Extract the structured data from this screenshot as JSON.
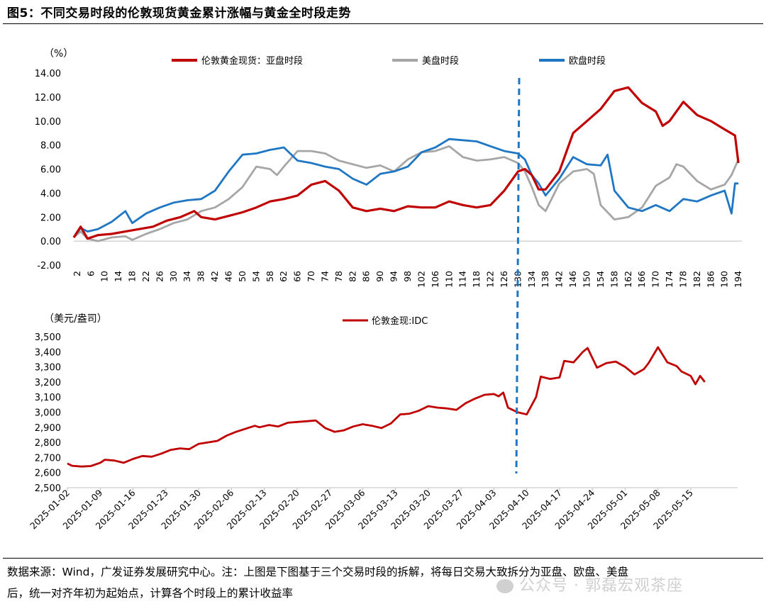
{
  "title": "图5：不同交易时段的伦敦现货黄金累计涨幅与黄金全时段走势",
  "footnote_line1": "数据来源：Wind，广发证券发展研究中心。注：上图是下图基于三个交易时段的拆解，将每日交易大致拆分为亚盘、欧盘、美盘",
  "footnote_line2": "后，统一对齐年初为起始点，计算各个时段上的累计收益率",
  "watermark": "公众号 · 郭磊宏观茶座",
  "colors": {
    "asia": "#c00000",
    "us": "#a6a6a6",
    "eu": "#1f77c4",
    "idc": "#c00000",
    "divider": "#1f77c4"
  },
  "chart_data": [
    {
      "type": "line",
      "unit_label": "（%）",
      "ylim": [
        -2,
        14
      ],
      "yticks": [
        "-2.00",
        "0.00",
        "2.00",
        "4.00",
        "6.00",
        "8.00",
        "10.00",
        "12.00",
        "14.00"
      ],
      "xlim": [
        1,
        195
      ],
      "xticks": [
        2,
        6,
        10,
        14,
        18,
        22,
        26,
        30,
        34,
        38,
        42,
        46,
        50,
        54,
        58,
        62,
        66,
        70,
        74,
        78,
        82,
        86,
        90,
        94,
        98,
        102,
        106,
        110,
        114,
        118,
        122,
        126,
        130,
        134,
        138,
        142,
        146,
        150,
        154,
        158,
        162,
        166,
        170,
        174,
        178,
        182,
        186,
        190,
        194
      ],
      "divider_x": 131,
      "legend": [
        "伦敦黄金现货：亚盘时段",
        "美盘时段",
        "欧盘时段"
      ],
      "series": [
        {
          "name": "伦敦黄金现货：亚盘时段",
          "key": "asia",
          "x": [
            1,
            3,
            5,
            8,
            12,
            16,
            20,
            24,
            28,
            32,
            36,
            38,
            42,
            46,
            50,
            54,
            58,
            62,
            66,
            70,
            74,
            78,
            82,
            86,
            90,
            94,
            98,
            102,
            106,
            110,
            114,
            118,
            122,
            126,
            130,
            132,
            134,
            136,
            138,
            142,
            146,
            150,
            154,
            158,
            162,
            166,
            170,
            172,
            174,
            178,
            182,
            186,
            190,
            193,
            194
          ],
          "y": [
            0.3,
            1.2,
            0.2,
            0.5,
            0.6,
            0.8,
            1.0,
            1.2,
            1.7,
            2.0,
            2.5,
            2.0,
            1.8,
            2.1,
            2.4,
            2.8,
            3.3,
            3.5,
            3.8,
            4.7,
            5.0,
            4.2,
            2.8,
            2.5,
            2.7,
            2.5,
            2.9,
            2.8,
            2.8,
            3.3,
            3.0,
            2.8,
            3.0,
            4.2,
            5.8,
            6.0,
            5.5,
            4.3,
            4.3,
            5.8,
            9.0,
            10.0,
            11.0,
            12.5,
            12.8,
            11.5,
            10.8,
            9.6,
            10.0,
            11.6,
            10.5,
            10.0,
            9.3,
            8.8,
            6.5
          ]
        },
        {
          "name": "美盘时段",
          "key": "us",
          "x": [
            1,
            3,
            5,
            8,
            12,
            16,
            18,
            22,
            26,
            30,
            34,
            38,
            42,
            46,
            50,
            54,
            58,
            60,
            62,
            66,
            70,
            74,
            78,
            82,
            86,
            90,
            94,
            98,
            102,
            106,
            110,
            114,
            118,
            122,
            126,
            130,
            132,
            134,
            136,
            138,
            142,
            146,
            150,
            152,
            154,
            158,
            162,
            166,
            170,
            174,
            176,
            178,
            182,
            186,
            190,
            192,
            194
          ],
          "y": [
            0.3,
            0.8,
            0.2,
            0.0,
            0.3,
            0.4,
            0.1,
            0.6,
            1.0,
            1.5,
            1.8,
            2.5,
            2.8,
            3.5,
            4.5,
            6.2,
            6.0,
            5.5,
            6.2,
            7.5,
            7.5,
            7.3,
            6.7,
            6.4,
            6.1,
            6.3,
            5.8,
            6.8,
            7.4,
            7.5,
            7.9,
            7.0,
            6.7,
            6.8,
            7.0,
            6.5,
            5.8,
            4.5,
            3.0,
            2.5,
            4.8,
            5.8,
            6.0,
            5.6,
            3.0,
            1.8,
            2.0,
            2.8,
            4.6,
            5.3,
            6.4,
            6.2,
            5.0,
            4.3,
            4.7,
            5.5,
            6.8
          ]
        },
        {
          "name": "欧盘时段",
          "key": "eu",
          "x": [
            1,
            3,
            5,
            8,
            12,
            16,
            18,
            22,
            26,
            30,
            34,
            38,
            42,
            46,
            50,
            54,
            58,
            60,
            62,
            66,
            70,
            74,
            78,
            82,
            86,
            90,
            94,
            98,
            102,
            106,
            110,
            114,
            118,
            122,
            126,
            130,
            132,
            134,
            136,
            138,
            142,
            146,
            150,
            154,
            156,
            158,
            162,
            166,
            170,
            174,
            178,
            182,
            186,
            190,
            192,
            193,
            194
          ],
          "y": [
            0.3,
            1.1,
            0.8,
            1.0,
            1.6,
            2.5,
            1.5,
            2.3,
            2.8,
            3.2,
            3.4,
            3.5,
            4.2,
            5.8,
            7.2,
            7.3,
            7.6,
            7.7,
            7.8,
            6.7,
            6.5,
            6.2,
            6.0,
            5.2,
            4.7,
            5.6,
            5.8,
            6.2,
            7.4,
            7.8,
            8.5,
            8.4,
            8.3,
            7.9,
            7.5,
            7.3,
            6.8,
            5.5,
            4.8,
            3.8,
            5.2,
            7.0,
            6.4,
            6.3,
            7.2,
            4.2,
            2.8,
            2.5,
            3.0,
            2.5,
            3.5,
            3.3,
            3.8,
            4.2,
            2.3,
            4.8,
            4.8
          ]
        }
      ]
    },
    {
      "type": "line",
      "unit_label": "（美元/盎司）",
      "ylim": [
        2500,
        3500
      ],
      "yticks": [
        "2,500",
        "2,600",
        "2,700",
        "2,800",
        "2,900",
        "3,000",
        "3,100",
        "3,200",
        "3,300",
        "3,400",
        "3,500"
      ],
      "xlim": [
        0,
        143
      ],
      "xticks": [
        "2025-01-02",
        "2025-01-09",
        "2025-01-16",
        "2025-01-23",
        "2025-01-30",
        "2025-02-06",
        "2025-02-13",
        "2025-02-20",
        "2025-02-27",
        "2025-03-06",
        "2025-03-13",
        "2025-03-20",
        "2025-03-27",
        "2025-04-03",
        "2025-04-10",
        "2025-04-17",
        "2025-04-24",
        "2025-05-01",
        "2025-05-08",
        "2025-05-15"
      ],
      "xtick_days": [
        0,
        7,
        14,
        21,
        28,
        35,
        42,
        49,
        56,
        63,
        70,
        77,
        84,
        91,
        98,
        105,
        112,
        119,
        126,
        133
      ],
      "divider_x": 93,
      "legend": [
        "伦敦金现:IDC"
      ],
      "series": [
        {
          "name": "伦敦金现:IDC",
          "key": "idc",
          "x": [
            0,
            1,
            3,
            5,
            7,
            8,
            10,
            12,
            14,
            16,
            18,
            20,
            22,
            24,
            26,
            28,
            30,
            32,
            34,
            36,
            38,
            40,
            41,
            43,
            45,
            47,
            49,
            51,
            53,
            55,
            57,
            59,
            61,
            63,
            65,
            67,
            69,
            71,
            73,
            75,
            77,
            79,
            81,
            83,
            85,
            87,
            89,
            91,
            92,
            93,
            94,
            96,
            98,
            100,
            101,
            103,
            105,
            106,
            108,
            110,
            111,
            113,
            115,
            117,
            119,
            121,
            123,
            124,
            126,
            128,
            130,
            131,
            133,
            134,
            135,
            136
          ],
          "y": [
            2660,
            2645,
            2640,
            2643,
            2665,
            2685,
            2680,
            2665,
            2690,
            2710,
            2705,
            2725,
            2750,
            2760,
            2755,
            2790,
            2800,
            2810,
            2845,
            2870,
            2890,
            2910,
            2900,
            2915,
            2905,
            2930,
            2935,
            2940,
            2945,
            2895,
            2870,
            2880,
            2905,
            2920,
            2910,
            2895,
            2925,
            2985,
            2990,
            3010,
            3040,
            3030,
            3025,
            3015,
            3060,
            3090,
            3115,
            3120,
            3105,
            3130,
            3030,
            3000,
            2985,
            3100,
            3235,
            3220,
            3230,
            3340,
            3330,
            3400,
            3425,
            3295,
            3325,
            3335,
            3300,
            3250,
            3285,
            3325,
            3430,
            3330,
            3305,
            3270,
            3240,
            3185,
            3240,
            3200
          ]
        }
      ]
    }
  ]
}
